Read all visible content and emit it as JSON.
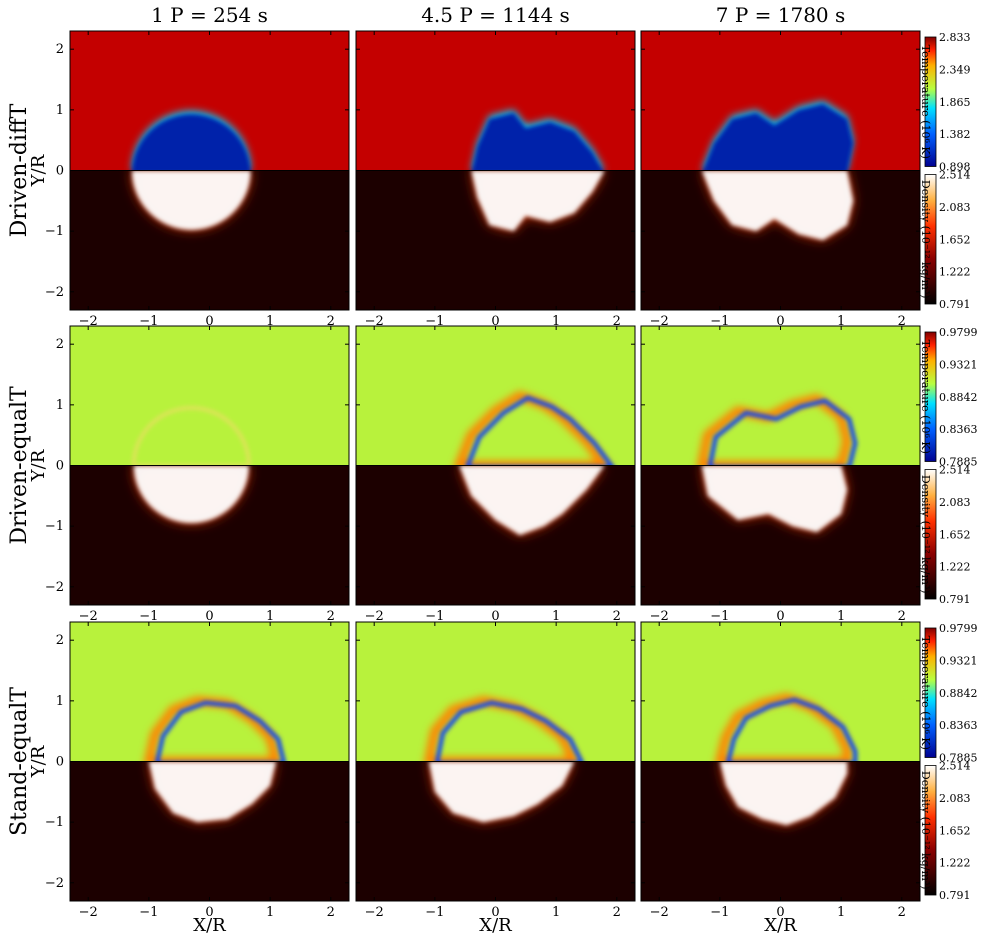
{
  "chart_data": {
    "type": "heatmap",
    "columns": [
      "1 P = 254 s",
      "4.5 P = 1144 s",
      "7 P = 1780 s"
    ],
    "rows": [
      "Driven-diffT",
      "Driven-equalT",
      "Stand-equalT"
    ],
    "xlabel": "X/R",
    "ylabel": "Y/R",
    "xlim": [
      -2.3,
      2.3
    ],
    "ylim": [
      -2.3,
      2.3
    ],
    "xticks": [
      -2,
      -1,
      0,
      1,
      2
    ],
    "yticks": [
      -2,
      -1,
      0,
      1,
      2
    ],
    "xtick_labels": [
      "−2",
      "−1",
      "0",
      "1",
      "2"
    ],
    "ytick_labels": [
      "−2",
      "−1",
      "0",
      "1",
      "2"
    ],
    "colorbars": [
      {
        "row": "Driven-diffT",
        "temperature": {
          "label": "Temperature (10⁶ K)",
          "range": [
            0.898,
            2.833
          ],
          "ticks": [
            "2.833",
            "2.349",
            "1.865",
            "1.382",
            "0.898"
          ]
        },
        "density": {
          "label": "Density (10⁻¹² kg/m³)",
          "range": [
            0.791,
            2.514
          ],
          "ticks": [
            "2.514",
            "2.083",
            "1.652",
            "1.222",
            "0.791"
          ]
        }
      },
      {
        "row": "Driven-equalT",
        "temperature": {
          "label": "Temperature (10⁶ K)",
          "range": [
            0.7885,
            0.9799
          ],
          "ticks": [
            "0.9799",
            "0.9321",
            "0.8842",
            "0.8363",
            "0.7885"
          ]
        },
        "density": {
          "label": "Density (10⁻¹² kg/m³)",
          "range": [
            0.791,
            2.514
          ],
          "ticks": [
            "2.514",
            "2.083",
            "1.652",
            "1.222",
            "0.791"
          ]
        }
      },
      {
        "row": "Stand-equalT",
        "temperature": {
          "label": "Temperature (10⁶ K)",
          "range": [
            0.7885,
            0.9799
          ],
          "ticks": [
            "0.9799",
            "0.9321",
            "0.8842",
            "0.8363",
            "0.7885"
          ]
        },
        "density": {
          "label": "Density (10⁻¹² kg/m³)",
          "range": [
            0.791,
            2.514
          ],
          "ticks": [
            "2.514",
            "2.083",
            "1.652",
            "1.222",
            "0.791"
          ]
        }
      }
    ],
    "colors": {
      "temp_background_diffT": "#c40000",
      "temp_background_equalT": "#b8f23c",
      "density_background": "#1c0000",
      "blob_core_diffT": "#0022aa",
      "density_core": "#ffffff"
    }
  }
}
